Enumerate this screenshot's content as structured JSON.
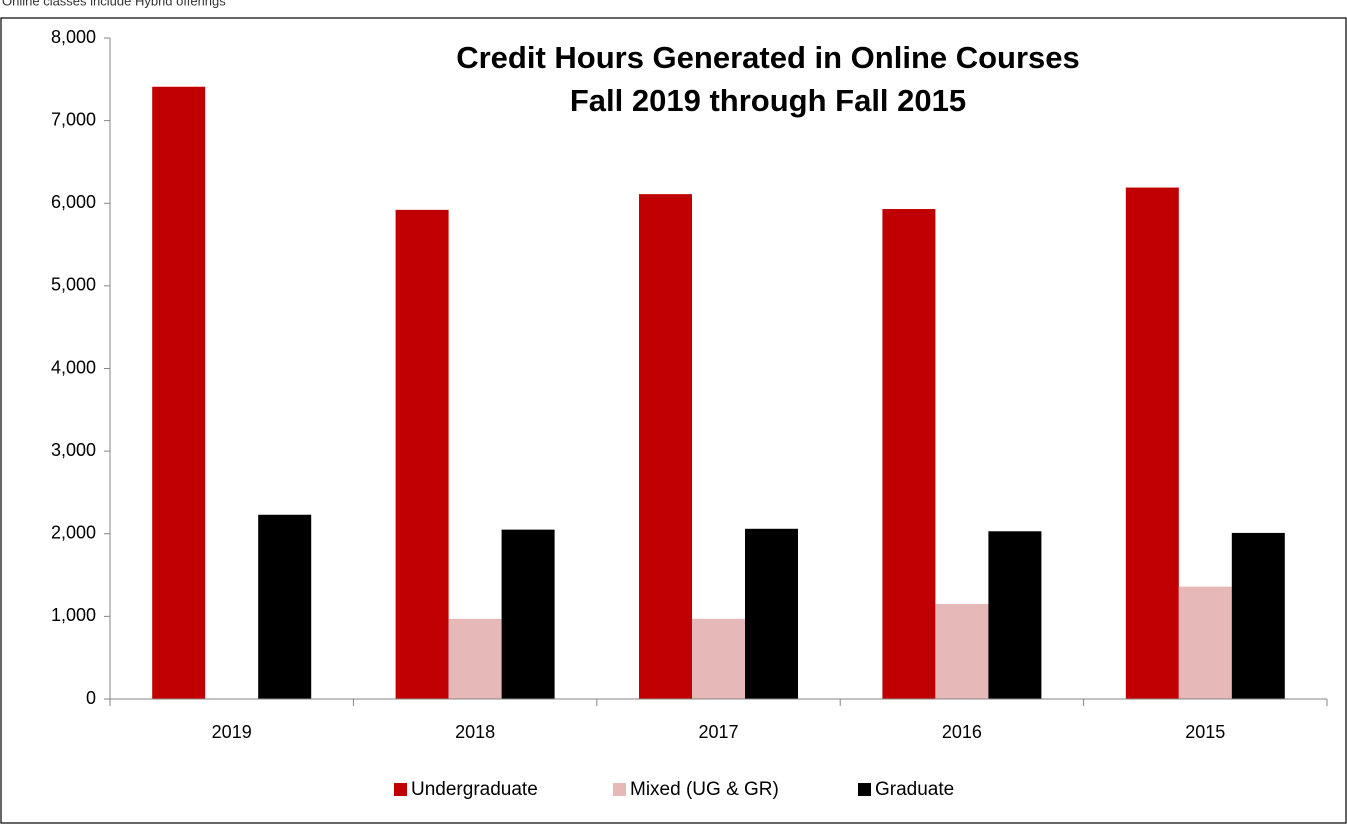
{
  "note": "Online classes include Hybrid offerings",
  "chart_data": {
    "type": "bar",
    "title": "Credit Hours Generated in Online Courses",
    "subtitle": "Fall 2019 through Fall 2015",
    "categories": [
      "2019",
      "2018",
      "2017",
      "2016",
      "2015"
    ],
    "series": [
      {
        "name": "Undergraduate",
        "color": "#c00000",
        "values": [
          7410,
          5920,
          6110,
          5930,
          6190
        ]
      },
      {
        "name": "Mixed (UG & GR)",
        "color": "#e6b9b8",
        "values": [
          null,
          970,
          970,
          1150,
          1360
        ]
      },
      {
        "name": "Graduate",
        "color": "#000000",
        "values": [
          2230,
          2050,
          2060,
          2030,
          2010
        ]
      }
    ],
    "ylim": [
      0,
      8000
    ],
    "yticks": [
      0,
      {
        "value": 1000,
        "label": "1,000"
      },
      {
        "value": 2000,
        "label": "2,000"
      },
      {
        "value": 3000,
        "label": "3,000"
      },
      {
        "value": 4000,
        "label": "4,000"
      },
      {
        "value": 5000,
        "label": "5,000"
      },
      {
        "value": 6000,
        "label": "6,000"
      },
      {
        "value": 7000,
        "label": "7,000"
      },
      {
        "value": 8000,
        "label": "8,000"
      }
    ],
    "grid": false,
    "legend": "bottom"
  }
}
